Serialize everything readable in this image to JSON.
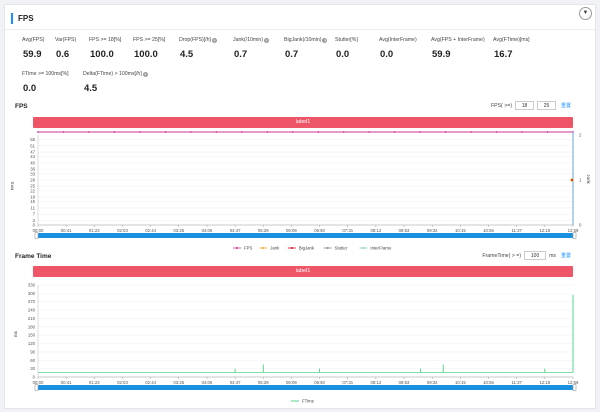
{
  "header": {
    "title": "FPS",
    "collapse_icon": "chevron-down-icon"
  },
  "stats_row1": [
    {
      "label": "Avg(FPS)",
      "value": "59.9",
      "help": false
    },
    {
      "label": "Var(FPS)",
      "value": "0.6",
      "help": false
    },
    {
      "label": "FPS >= 18[%]",
      "value": "100.0",
      "help": false
    },
    {
      "label": "FPS >= 25[%]",
      "value": "100.0",
      "help": false
    },
    {
      "label": "Drop(FPS)[/h]",
      "value": "4.5",
      "help": true
    },
    {
      "label": "Jank(/10min)",
      "value": "0.7",
      "help": true
    },
    {
      "label": "BigJank(/10min)",
      "value": "0.7",
      "help": true
    },
    {
      "label": "Stutter[%]",
      "value": "0.0",
      "help": false
    },
    {
      "label": "Avg(InterFrame)",
      "value": "0.0",
      "help": false
    },
    {
      "label": "Avg(FPS + InterFrame)",
      "value": "59.9",
      "help": false
    },
    {
      "label": "Avg(FTime)[ms]",
      "value": "16.7",
      "help": false
    }
  ],
  "stats_row2": [
    {
      "label": "FTime >= 100ms[%]",
      "value": "0.0",
      "help": false
    },
    {
      "label": "Delta(FTime) > 100ms[/h]",
      "value": "4.5",
      "help": true
    }
  ],
  "fps_section": {
    "title": "FPS",
    "control_label": "FPS( >=)",
    "input1": "18",
    "input2": "25",
    "reset_label": "重置",
    "bar_label": "label1"
  },
  "ftime_section": {
    "title": "Frame Time",
    "control_label": "FrameTime( > =)",
    "input1": "100",
    "unit": "ms",
    "reset_label": "重置",
    "bar_label": "label1"
  },
  "x_ticks": [
    "00:00",
    "00:41",
    "01:22",
    "02:03",
    "02:44",
    "03:25",
    "04:06",
    "04:47",
    "05:28",
    "06:09",
    "06:50",
    "07:31",
    "08:12",
    "08:53",
    "09:34",
    "10:15",
    "10:56",
    "11:37",
    "12:18",
    "12:59"
  ],
  "chart_data": [
    {
      "type": "line",
      "ylabel": "FPS",
      "y2label": "Jank",
      "y_ticks": [
        "0",
        "3",
        "7",
        "11",
        "15",
        "18",
        "22",
        "25",
        "29",
        "33",
        "36",
        "40",
        "44",
        "47",
        "51",
        "55"
      ],
      "y2_ticks": [
        "0",
        "1",
        "2"
      ],
      "ylim": [
        0,
        58
      ],
      "y2lim": [
        0,
        2
      ],
      "x": [
        "00:00",
        "12:59"
      ],
      "series": [
        {
          "name": "FPS",
          "color": "#cc3399",
          "values": [
            59.9,
            59.9
          ]
        },
        {
          "name": "Jank",
          "color": "#f5a623",
          "values": [
            0,
            1
          ]
        },
        {
          "name": "BigJank",
          "color": "#d0021b",
          "values": [
            0,
            1
          ]
        },
        {
          "name": "Stutter",
          "color": "#888888",
          "values": [
            0,
            0
          ]
        },
        {
          "name": "InterFrame",
          "color": "#7fd3c2",
          "values": [
            0,
            0
          ]
        }
      ],
      "legend": "bottom"
    },
    {
      "type": "line",
      "ylabel": "ms",
      "y_ticks": [
        "0",
        "30",
        "60",
        "90",
        "120",
        "150",
        "180",
        "210",
        "240",
        "270",
        "300",
        "330"
      ],
      "ylim": [
        0,
        330
      ],
      "x_spikes": [
        {
          "x": "04:47",
          "y": 30
        },
        {
          "x": "05:28",
          "y": 45
        },
        {
          "x": "06:50",
          "y": 30
        },
        {
          "x": "09:17",
          "y": 30
        },
        {
          "x": "09:50",
          "y": 45
        },
        {
          "x": "12:18",
          "y": 30
        },
        {
          "x": "12:59",
          "y": 295
        }
      ],
      "series": [
        {
          "name": "FTime",
          "color": "#2ecc71",
          "baseline": 16.7
        }
      ],
      "legend": "bottom"
    }
  ]
}
